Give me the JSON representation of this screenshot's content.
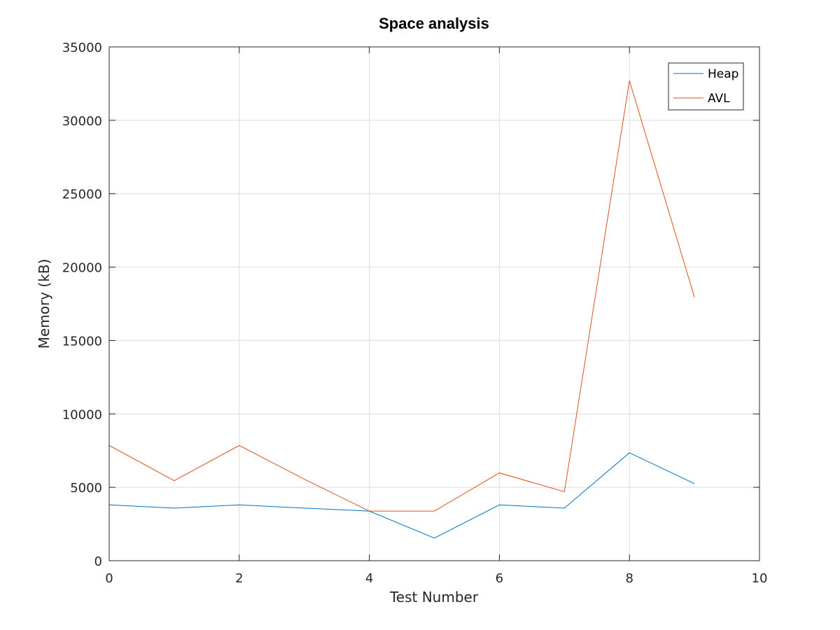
{
  "chart_data": {
    "type": "line",
    "title": "Space analysis",
    "xlabel": "Test Number",
    "ylabel": "Memory (kB)",
    "xlim": [
      0,
      10
    ],
    "ylim": [
      0,
      35000
    ],
    "xticks": [
      0,
      2,
      4,
      6,
      8,
      10
    ],
    "yticks": [
      0,
      5000,
      10000,
      15000,
      20000,
      25000,
      30000,
      35000
    ],
    "xtick_labels": [
      "0",
      "2",
      "4",
      "6",
      "8",
      "10"
    ],
    "ytick_labels": [
      "0",
      "5000",
      "10000",
      "15000",
      "20000",
      "25000",
      "30000",
      "35000"
    ],
    "grid": true,
    "legend_position": "top-right",
    "x": [
      0,
      1,
      2,
      3,
      4,
      5,
      6,
      7,
      8,
      9
    ],
    "series": [
      {
        "name": "Heap",
        "color": "#0072BD",
        "values": [
          3800,
          3580,
          3800,
          3580,
          3380,
          1540,
          3800,
          3580,
          7350,
          5250
        ]
      },
      {
        "name": "AVL",
        "color": "#D95319",
        "values": [
          7850,
          5450,
          7850,
          5550,
          3380,
          3380,
          5980,
          4700,
          32700,
          17950
        ]
      }
    ]
  }
}
